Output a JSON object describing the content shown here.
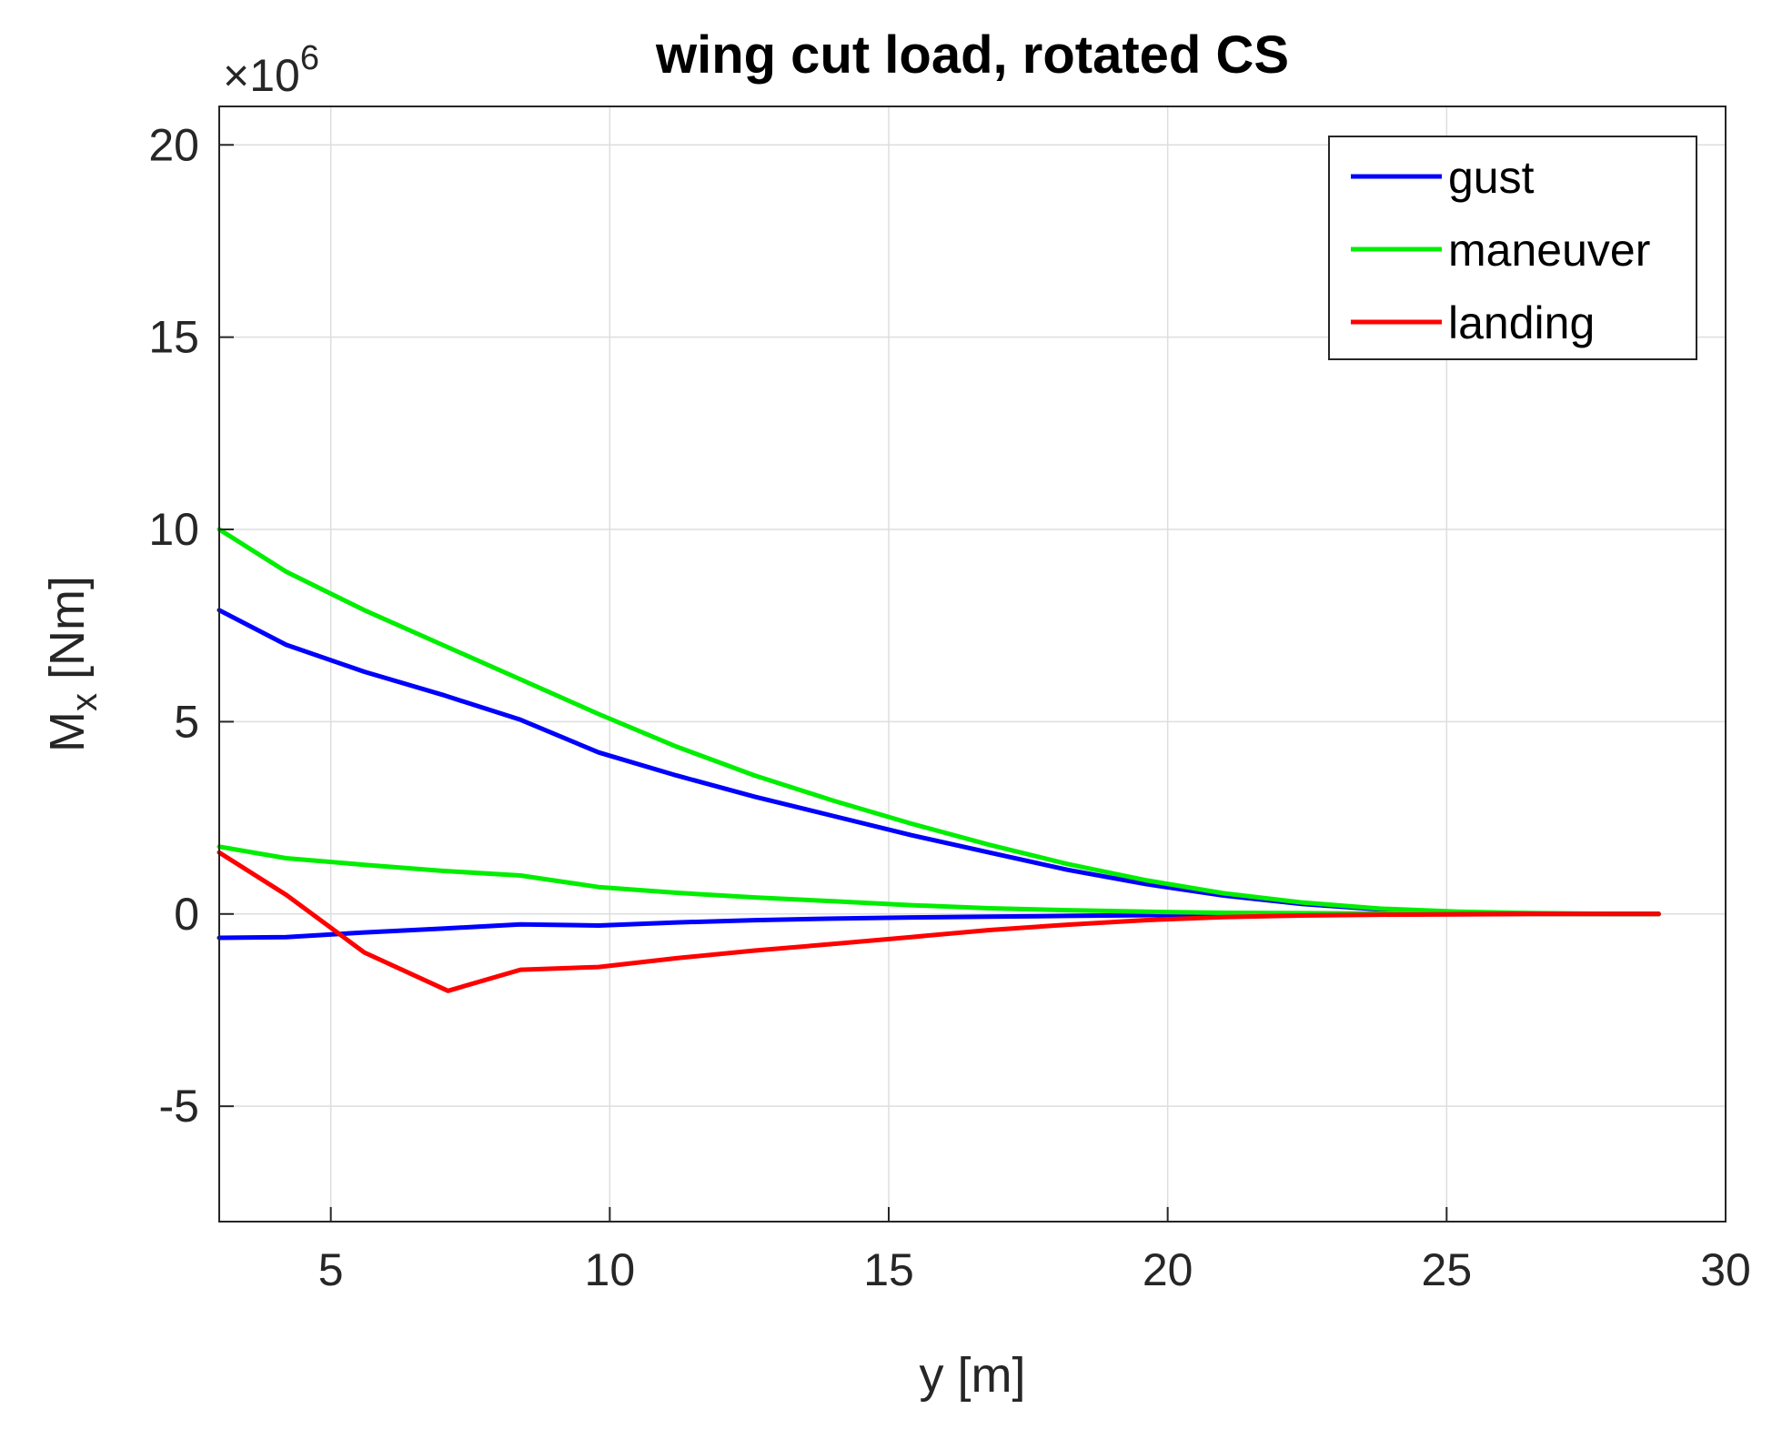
{
  "chart_data": {
    "type": "line",
    "title": "wing cut load, rotated CS",
    "xlabel": "y [m]",
    "ylabel_main": "M",
    "ylabel_sub": "x",
    "ylabel_unit": " [Nm]",
    "y_exponent_prefix": "×10",
    "y_exponent_power": "6",
    "xlim": [
      3,
      30
    ],
    "ylim": [
      -8,
      21
    ],
    "x_ticks": [
      5,
      10,
      15,
      20,
      25,
      30
    ],
    "y_ticks": [
      -5,
      0,
      5,
      10,
      15,
      20
    ],
    "grid": true,
    "legend_position": "top-right",
    "legend": [
      "gust",
      "maneuver",
      "landing"
    ],
    "series": [
      {
        "name": "gust",
        "color": "#0000ff",
        "show_in_legend": true,
        "x": [
          3.0,
          4.2,
          5.6,
          7.0,
          8.4,
          9.8,
          11.2,
          12.6,
          14.0,
          15.4,
          16.8,
          18.2,
          19.6,
          21.0,
          22.4,
          23.8,
          25.2,
          26.6,
          28.0,
          28.8
        ],
        "y": [
          7.9,
          7.0,
          6.3,
          5.7,
          5.05,
          4.2,
          3.6,
          3.05,
          2.55,
          2.05,
          1.6,
          1.15,
          0.78,
          0.48,
          0.26,
          0.12,
          0.04,
          0.01,
          0.0,
          0.0
        ]
      },
      {
        "name": "maneuver",
        "color": "#00ee00",
        "show_in_legend": true,
        "x": [
          3.0,
          4.2,
          5.6,
          7.0,
          8.4,
          9.8,
          11.2,
          12.6,
          14.0,
          15.4,
          16.8,
          18.2,
          19.6,
          21.0,
          22.4,
          23.8,
          25.2,
          26.6,
          28.0,
          28.8
        ],
        "y": [
          10.0,
          8.9,
          7.9,
          7.0,
          6.1,
          5.2,
          4.35,
          3.6,
          2.95,
          2.35,
          1.8,
          1.3,
          0.88,
          0.54,
          0.3,
          0.14,
          0.06,
          0.02,
          0.0,
          0.0
        ]
      },
      {
        "name": "gust",
        "color": "#0000ff",
        "show_in_legend": false,
        "x": [
          3.0,
          4.2,
          5.6,
          7.0,
          8.4,
          9.8,
          11.2,
          12.6,
          14.0,
          15.4,
          16.8,
          18.2,
          19.6,
          21.0,
          22.4,
          23.8,
          25.2,
          26.6,
          28.0,
          28.8
        ],
        "y": [
          -0.62,
          -0.6,
          -0.48,
          -0.38,
          -0.27,
          -0.3,
          -0.22,
          -0.16,
          -0.12,
          -0.09,
          -0.07,
          -0.05,
          -0.03,
          -0.02,
          -0.01,
          -0.01,
          0.0,
          0.0,
          0.0,
          0.0
        ]
      },
      {
        "name": "maneuver",
        "color": "#00ee00",
        "show_in_legend": false,
        "x": [
          3.0,
          4.2,
          5.6,
          7.0,
          8.4,
          9.8,
          11.2,
          12.6,
          14.0,
          15.4,
          16.8,
          18.2,
          19.6,
          21.0,
          22.4,
          23.8,
          25.2,
          26.6,
          28.0,
          28.8
        ],
        "y": [
          1.75,
          1.45,
          1.28,
          1.12,
          1.0,
          0.7,
          0.55,
          0.43,
          0.33,
          0.23,
          0.15,
          0.1,
          0.06,
          0.03,
          0.02,
          0.01,
          0.0,
          0.0,
          0.0,
          0.0
        ]
      },
      {
        "name": "landing",
        "color": "#ff0000",
        "show_in_legend": true,
        "x": [
          3.0,
          4.2,
          5.6,
          7.1,
          8.4,
          9.8,
          11.2,
          12.6,
          14.0,
          15.4,
          16.8,
          18.2,
          19.6,
          21.0,
          22.4,
          23.8,
          25.2,
          26.6,
          28.0,
          28.8
        ],
        "y": [
          1.6,
          0.5,
          -1.0,
          -2.0,
          -1.45,
          -1.38,
          -1.15,
          -0.95,
          -0.78,
          -0.6,
          -0.42,
          -0.28,
          -0.16,
          -0.08,
          -0.04,
          -0.02,
          -0.01,
          0.0,
          0.0,
          0.0
        ]
      }
    ]
  }
}
